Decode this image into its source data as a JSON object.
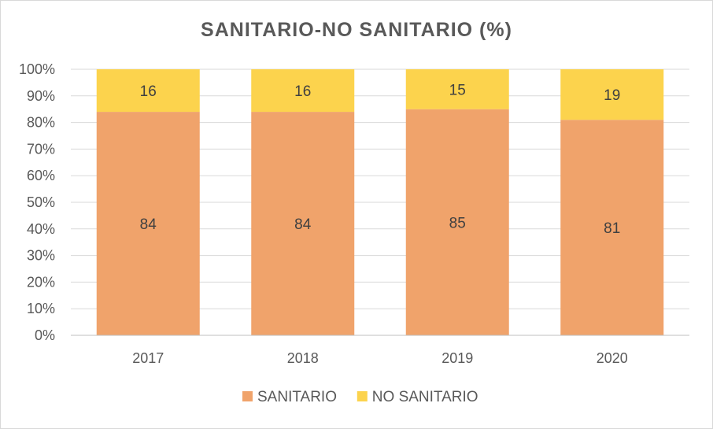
{
  "chart_data": {
    "type": "bar",
    "stacked": true,
    "title": "SANITARIO-NO SANITARIO (%)",
    "categories": [
      "2017",
      "2018",
      "2019",
      "2020"
    ],
    "series": [
      {
        "name": "SANITARIO",
        "values": [
          84,
          84,
          85,
          81
        ],
        "color": "#f0a36b"
      },
      {
        "name": "NO SANITARIO",
        "values": [
          16,
          16,
          15,
          19
        ],
        "color": "#fcd34d"
      }
    ],
    "yticks": [
      "0%",
      "10%",
      "20%",
      "30%",
      "40%",
      "50%",
      "60%",
      "70%",
      "80%",
      "90%",
      "100%"
    ],
    "ylim": [
      0,
      100
    ],
    "grid": true,
    "legend_position": "bottom"
  }
}
